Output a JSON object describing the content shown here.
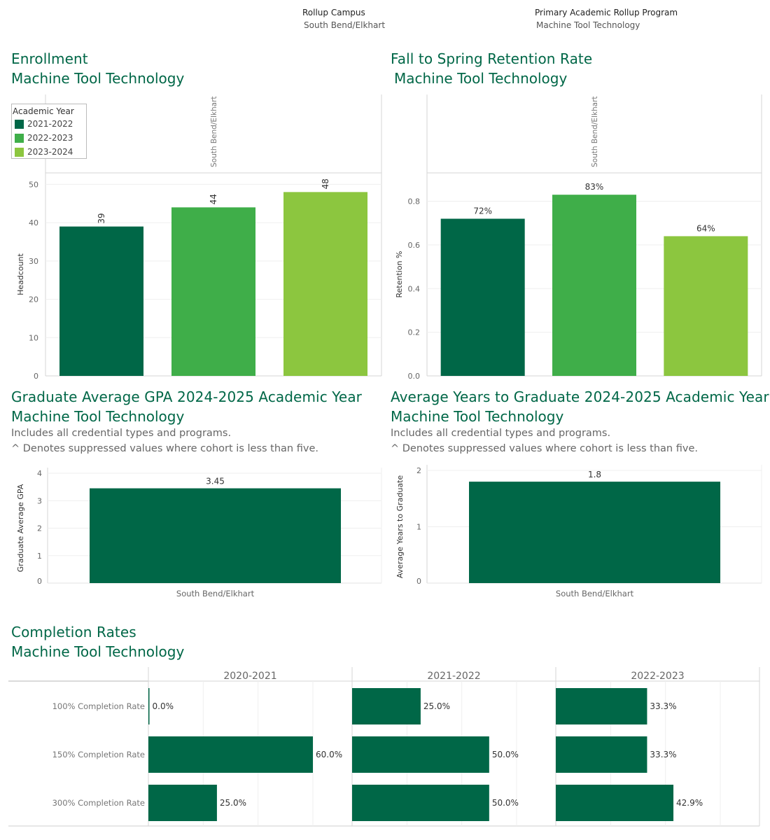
{
  "filters": {
    "campus_label": "Rollup Campus",
    "campus_value": "South Bend/Elkhart",
    "program_label": "Primary Academic Rollup Program",
    "program_value": "Machine Tool Technology"
  },
  "colors": {
    "brand_dark": "#006747",
    "mid_green": "#3fae49",
    "light_green": "#8cc63f",
    "title_green": "#006747"
  },
  "sections": {
    "enrollment": {
      "title": "Enrollment",
      "subtitle": "Machine Tool Technology"
    },
    "retention": {
      "title": "Fall to Spring Retention Rate",
      "subtitle": "Machine Tool Technology"
    },
    "gpa": {
      "title": "Graduate Average GPA 2024-2025 Academic Year",
      "subtitle": "Machine Tool Technology",
      "note1": "Includes all credential types and programs.",
      "note2": "^ Denotes suppressed values where cohort is less than five."
    },
    "years": {
      "title": "Average Years to Graduate 2024-2025 Academic Year",
      "subtitle": "Machine Tool Technology",
      "note1": "Includes all credential types and programs.",
      "note2": "^ Denotes suppressed values where cohort is less than five."
    },
    "completion": {
      "title": "Completion Rates",
      "subtitle": "Machine Tool Technology"
    }
  },
  "legend": {
    "title": "Academic Year",
    "items": [
      "2021-2022",
      "2022-2023",
      "2023-2024"
    ]
  },
  "chart_data": [
    {
      "type": "bar",
      "id": "enrollment",
      "panel_label": "South Bend/Elkhart",
      "categories": [
        "2021-2022",
        "2022-2023",
        "2023-2024"
      ],
      "values": [
        39,
        44,
        48
      ],
      "value_labels": [
        "39",
        "44",
        "48"
      ],
      "ylabel": "Headcount",
      "ylim": [
        0,
        53
      ],
      "yticks": [
        "0",
        "10",
        "20",
        "30",
        "40",
        "50"
      ],
      "legend": "top-left"
    },
    {
      "type": "bar",
      "id": "retention",
      "panel_label": "South Bend/Elkhart",
      "categories": [
        "2021-2022",
        "2022-2023",
        "2023-2024"
      ],
      "values": [
        0.72,
        0.83,
        0.64
      ],
      "value_labels": [
        "72%",
        "83%",
        "64%"
      ],
      "ylabel": "Retention %",
      "ylim": [
        0,
        0.93
      ],
      "yticks": [
        "0.0",
        "0.2",
        "0.4",
        "0.6",
        "0.8"
      ]
    },
    {
      "type": "bar",
      "id": "gpa",
      "categories": [
        "South Bend/Elkhart"
      ],
      "values": [
        3.45
      ],
      "value_labels": [
        "3.45"
      ],
      "ylabel": "Graduate Average GPA",
      "ylim": [
        0,
        4
      ],
      "yticks": [
        "0",
        "1",
        "2",
        "3",
        "4"
      ]
    },
    {
      "type": "bar",
      "id": "years",
      "categories": [
        "South Bend/Elkhart"
      ],
      "values": [
        1.8
      ],
      "value_labels": [
        "1.8"
      ],
      "ylabel": "Average Years to Graduate",
      "ylim": [
        0,
        2
      ],
      "yticks": [
        "0",
        "1",
        "2"
      ]
    },
    {
      "type": "bar",
      "id": "completion",
      "orientation": "horizontal",
      "categories": [
        "100% Completion Rate",
        "150% Completion Rate",
        "300% Completion Rate"
      ],
      "panels": [
        {
          "name": "2020-2021",
          "values": [
            0.0,
            60.0,
            25.0
          ],
          "value_labels": [
            "0.0%",
            "60.0%",
            "25.0%"
          ]
        },
        {
          "name": "2021-2022",
          "values": [
            25.0,
            50.0,
            50.0
          ],
          "value_labels": [
            "25.0%",
            "50.0%",
            "50.0%"
          ]
        },
        {
          "name": "2022-2023",
          "values": [
            33.3,
            33.3,
            42.9
          ],
          "value_labels": [
            "33.3%",
            "33.3%",
            "42.9%"
          ]
        }
      ],
      "xlim": [
        0,
        75
      ]
    }
  ]
}
